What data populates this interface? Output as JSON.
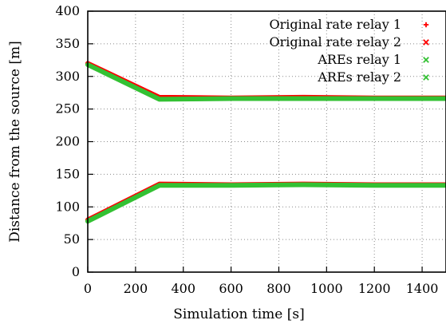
{
  "chart_data": {
    "type": "line",
    "xlabel": "Simulation time [s]",
    "ylabel": "Distance from the source [m]",
    "xlim": [
      0,
      1500
    ],
    "ylim": [
      0,
      400
    ],
    "xticks": [
      0,
      200,
      400,
      600,
      800,
      1000,
      1200,
      1400
    ],
    "yticks": [
      0,
      50,
      100,
      150,
      200,
      250,
      300,
      350,
      400
    ],
    "grid": true,
    "legend_position": "top-right",
    "series": [
      {
        "name": "Original rate relay 1",
        "color": "#ff0000",
        "marker": "plus",
        "points": [
          [
            0,
            80
          ],
          [
            300,
            135
          ],
          [
            600,
            134
          ],
          [
            900,
            135
          ],
          [
            1200,
            134
          ],
          [
            1500,
            134
          ]
        ]
      },
      {
        "name": "Original rate relay 2",
        "color": "#ff0000",
        "marker": "cross",
        "points": [
          [
            0,
            320
          ],
          [
            300,
            268
          ],
          [
            600,
            267
          ],
          [
            900,
            268
          ],
          [
            1200,
            267
          ],
          [
            1500,
            267
          ]
        ]
      },
      {
        "name": "AREs relay 1",
        "color": "#33c133",
        "marker": "cross",
        "points": [
          [
            0,
            78
          ],
          [
            300,
            133
          ],
          [
            600,
            133
          ],
          [
            900,
            134
          ],
          [
            1200,
            133
          ],
          [
            1500,
            133
          ]
        ]
      },
      {
        "name": "AREs relay 2",
        "color": "#33c133",
        "marker": "cross",
        "points": [
          [
            0,
            318
          ],
          [
            300,
            265
          ],
          [
            600,
            266
          ],
          [
            900,
            266
          ],
          [
            1200,
            266
          ],
          [
            1500,
            266
          ]
        ]
      }
    ]
  }
}
